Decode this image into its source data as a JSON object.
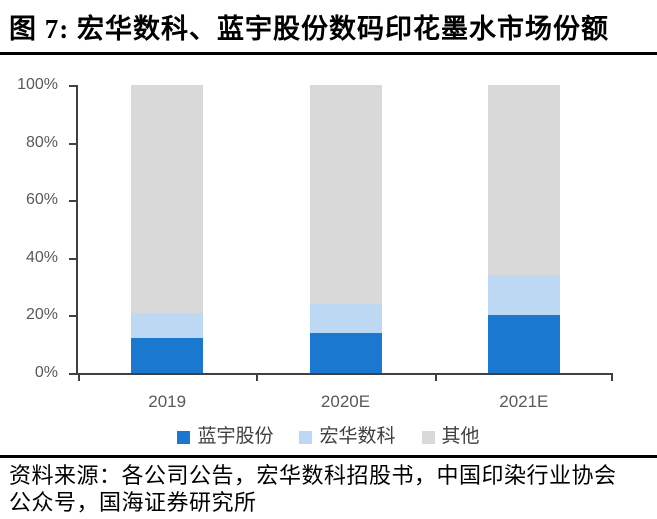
{
  "header": {
    "figure_label": "图 7:",
    "title": "图 7: 宏华数科、蓝宇股份数码印花墨水市场份额"
  },
  "chart_data": {
    "type": "bar",
    "stacked": true,
    "percent_stacked": true,
    "title": "宏华数科、蓝宇股份数码印花墨水市场份额",
    "categories": [
      "2019",
      "2020E",
      "2021E"
    ],
    "series": [
      {
        "name": "蓝宇股份",
        "color": "#1B78D0",
        "values": [
          12,
          14,
          20
        ]
      },
      {
        "name": "宏华数科",
        "color": "#BDD8F2",
        "values": [
          9,
          10,
          14
        ]
      },
      {
        "name": "其他",
        "color": "#D9D9D9",
        "values": [
          79,
          76,
          66
        ]
      }
    ],
    "xlabel": "",
    "ylabel": "",
    "ylim": [
      0,
      100
    ],
    "yticks": [
      {
        "value": 0,
        "label": "0%"
      },
      {
        "value": 20,
        "label": "20%"
      },
      {
        "value": 40,
        "label": "40%"
      },
      {
        "value": 60,
        "label": "60%"
      },
      {
        "value": 80,
        "label": "80%"
      },
      {
        "value": 100,
        "label": "100%"
      }
    ],
    "grid": false,
    "legend_position": "bottom",
    "axis_color": "#404040",
    "tick_label_color": "#595959"
  },
  "source": {
    "lines": [
      "资料来源：各公司公告，宏华数科招股书，中国印染行业协会",
      "公众号，国海证券研究所"
    ]
  }
}
